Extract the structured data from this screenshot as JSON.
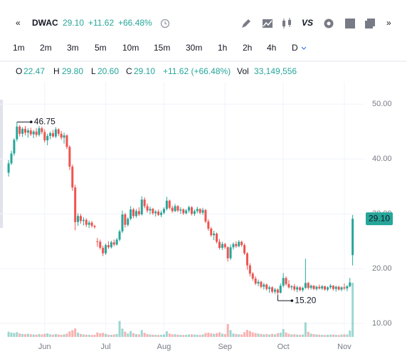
{
  "toolbar": {
    "collapse": "«",
    "symbol": "DWAC",
    "price": "29.10",
    "change": "+11.62",
    "change_pct": "+66.48%",
    "compare": "VS",
    "expand": "»"
  },
  "timeframes": [
    "1m",
    "2m",
    "3m",
    "5m",
    "10m",
    "15m",
    "30m",
    "1h",
    "2h",
    "4h",
    "D"
  ],
  "ohlc_legend": {
    "o_label": "O",
    "o": "22.47",
    "h_label": "H",
    "h": "29.80",
    "l_label": "L",
    "l": "20.60",
    "c_label": "C",
    "c": "29.10",
    "change": "+11.62 (+66.48%)",
    "vol_label": "Vol",
    "vol": "33,149,556"
  },
  "chart_data": {
    "type": "candlestick",
    "up_color": "#26a69a",
    "down_color": "#ef5350",
    "grid": true,
    "ylim": [
      7.3,
      56
    ],
    "xlim": [
      -3.1,
      128.2
    ],
    "yticks": [
      {
        "value": 10,
        "label": "10.00"
      },
      {
        "value": 20,
        "label": "20.00"
      },
      {
        "value": 30,
        "label": "30.00"
      },
      {
        "value": 40,
        "label": "40.00"
      },
      {
        "value": 50,
        "label": "50.00"
      }
    ],
    "xticks": [
      {
        "value": 13,
        "label": "Jun"
      },
      {
        "value": 35,
        "label": "Jul"
      },
      {
        "value": 56,
        "label": "Aug"
      },
      {
        "value": 78,
        "label": "Sep"
      },
      {
        "value": 99,
        "label": "Oct"
      },
      {
        "value": 121,
        "label": "Nov"
      }
    ],
    "annotations": [
      {
        "value": 46.75,
        "label": "46.75"
      },
      {
        "value": 15.2,
        "label": "15.20"
      }
    ],
    "last_price": {
      "value": 29.1,
      "label": "29.10"
    },
    "candles": [
      [
        37.5,
        39.8,
        36.8,
        39.2
      ],
      [
        39.2,
        41.5,
        38.9,
        41.0
      ],
      [
        41.0,
        43.8,
        40.6,
        43.5
      ],
      [
        43.6,
        46.75,
        43.2,
        45.9
      ],
      [
        45.9,
        46.2,
        44.1,
        44.6
      ],
      [
        44.6,
        45.8,
        44.0,
        45.5
      ],
      [
        45.5,
        46.0,
        44.3,
        44.8
      ],
      [
        44.8,
        45.6,
        43.9,
        45.2
      ],
      [
        45.2,
        45.7,
        44.2,
        44.5
      ],
      [
        44.5,
        45.3,
        43.8,
        45.0
      ],
      [
        45.0,
        45.6,
        44.0,
        44.4
      ],
      [
        44.4,
        46.0,
        44.1,
        45.6
      ],
      [
        45.6,
        45.9,
        44.5,
        44.9
      ],
      [
        44.9,
        45.4,
        43.0,
        43.4
      ],
      [
        43.4,
        44.6,
        42.5,
        44.2
      ],
      [
        44.2,
        45.0,
        43.6,
        44.7
      ],
      [
        44.7,
        45.3,
        43.9,
        44.1
      ],
      [
        44.1,
        45.8,
        43.8,
        45.4
      ],
      [
        45.4,
        45.6,
        44.2,
        44.6
      ],
      [
        44.6,
        45.1,
        43.5,
        43.9
      ],
      [
        43.9,
        44.8,
        42.8,
        44.3
      ],
      [
        44.3,
        44.5,
        41.8,
        42.2
      ],
      [
        42.2,
        42.5,
        38.0,
        38.6
      ],
      [
        38.6,
        39.0,
        34.2,
        34.8
      ],
      [
        34.8,
        35.3,
        27.0,
        28.5
      ],
      [
        28.5,
        30.1,
        27.8,
        29.6
      ],
      [
        29.6,
        30.0,
        28.2,
        28.7
      ],
      [
        28.7,
        29.4,
        27.9,
        28.9
      ],
      [
        28.9,
        29.2,
        27.6,
        28.0
      ],
      [
        28.0,
        28.8,
        27.4,
        28.4
      ],
      [
        28.4,
        28.7,
        27.5,
        27.8
      ],
      [
        27.8,
        28.0,
        27.3,
        27.6
      ],
      [
        25.0,
        25.6,
        24.0,
        24.9
      ],
      [
        24.9,
        25.3,
        23.5,
        23.8
      ],
      [
        23.8,
        24.2,
        22.3,
        22.8
      ],
      [
        22.8,
        24.6,
        22.5,
        24.3
      ],
      [
        24.3,
        25.0,
        23.6,
        23.9
      ],
      [
        23.9,
        25.1,
        23.7,
        24.8
      ],
      [
        24.8,
        25.3,
        24.1,
        24.4
      ],
      [
        24.4,
        25.6,
        24.2,
        25.3
      ],
      [
        25.3,
        27.1,
        25.0,
        26.8
      ],
      [
        26.8,
        30.6,
        26.5,
        29.9
      ],
      [
        29.9,
        30.2,
        27.5,
        28.0
      ],
      [
        28.0,
        29.4,
        27.7,
        29.1
      ],
      [
        29.1,
        31.4,
        28.8,
        30.8
      ],
      [
        30.8,
        31.1,
        29.2,
        29.6
      ],
      [
        29.6,
        30.9,
        29.3,
        30.5
      ],
      [
        30.5,
        31.2,
        29.6,
        29.9
      ],
      [
        29.9,
        33.2,
        29.7,
        32.6
      ],
      [
        32.6,
        33.0,
        31.0,
        31.4
      ],
      [
        31.4,
        31.9,
        30.2,
        30.6
      ],
      [
        30.6,
        31.3,
        29.9,
        30.9
      ],
      [
        30.9,
        31.1,
        29.8,
        30.1
      ],
      [
        30.1,
        30.7,
        29.5,
        30.4
      ],
      [
        30.4,
        30.8,
        29.6,
        29.8
      ],
      [
        29.8,
        30.6,
        29.4,
        30.2
      ],
      [
        30.2,
        31.2,
        29.9,
        30.9
      ],
      [
        30.9,
        33.1,
        30.6,
        32.4
      ],
      [
        32.4,
        32.6,
        30.8,
        31.1
      ],
      [
        31.1,
        31.5,
        30.2,
        30.5
      ],
      [
        30.5,
        31.8,
        30.3,
        31.4
      ],
      [
        31.4,
        31.6,
        30.3,
        30.6
      ],
      [
        30.6,
        31.2,
        30.0,
        30.8
      ],
      [
        30.8,
        31.0,
        29.8,
        30.1
      ],
      [
        30.1,
        30.9,
        29.9,
        30.6
      ],
      [
        30.6,
        31.5,
        30.2,
        31.2
      ],
      [
        31.2,
        31.4,
        29.7,
        30.0
      ],
      [
        30.0,
        30.8,
        29.6,
        30.5
      ],
      [
        30.5,
        31.3,
        30.1,
        30.9
      ],
      [
        30.9,
        31.0,
        29.9,
        30.2
      ],
      [
        30.2,
        31.1,
        29.8,
        30.7
      ],
      [
        30.7,
        30.9,
        28.3,
        28.6
      ],
      [
        28.6,
        29.0,
        26.9,
        27.3
      ],
      [
        27.3,
        27.6,
        25.8,
        26.1
      ],
      [
        26.1,
        26.9,
        25.2,
        26.4
      ],
      [
        26.4,
        26.6,
        24.6,
        24.9
      ],
      [
        24.9,
        25.4,
        23.5,
        23.8
      ],
      [
        23.8,
        24.9,
        23.4,
        24.5
      ],
      [
        24.5,
        24.7,
        23.6,
        23.9
      ],
      [
        23.9,
        24.1,
        21.3,
        21.9
      ],
      [
        21.9,
        24.4,
        21.6,
        23.9
      ],
      [
        23.9,
        24.8,
        23.5,
        24.5
      ],
      [
        24.5,
        25.0,
        23.8,
        24.1
      ],
      [
        24.1,
        25.2,
        23.9,
        24.9
      ],
      [
        24.9,
        25.1,
        24.0,
        24.3
      ],
      [
        24.3,
        24.6,
        22.5,
        22.8
      ],
      [
        22.8,
        23.0,
        19.8,
        20.6
      ],
      [
        20.6,
        21.0,
        18.6,
        19.1
      ],
      [
        19.1,
        19.4,
        17.8,
        18.2
      ],
      [
        18.2,
        18.6,
        17.0,
        17.3
      ],
      [
        17.3,
        18.0,
        16.8,
        17.6
      ],
      [
        17.6,
        17.8,
        16.4,
        16.7
      ],
      [
        16.7,
        17.4,
        16.2,
        17.1
      ],
      [
        17.1,
        17.3,
        16.0,
        16.3
      ],
      [
        16.3,
        16.9,
        15.6,
        16.6
      ],
      [
        16.6,
        16.8,
        15.5,
        15.8
      ],
      [
        15.8,
        16.5,
        15.4,
        16.2
      ],
      [
        16.2,
        16.4,
        15.2,
        15.6
      ],
      [
        15.6,
        17.3,
        15.5,
        16.9
      ],
      [
        16.9,
        19.2,
        16.6,
        18.3
      ],
      [
        18.3,
        18.6,
        16.9,
        17.2
      ],
      [
        17.2,
        17.9,
        16.4,
        16.6
      ],
      [
        16.6,
        17.0,
        16.1,
        16.8
      ],
      [
        16.8,
        17.2,
        15.9,
        16.2
      ],
      [
        16.2,
        16.9,
        15.7,
        16.6
      ],
      [
        16.6,
        16.8,
        15.9,
        16.1
      ],
      [
        16.1,
        16.7,
        15.8,
        16.5
      ],
      [
        16.5,
        21.8,
        16.3,
        17.4
      ],
      [
        17.4,
        17.6,
        16.2,
        16.5
      ],
      [
        16.5,
        17.1,
        16.2,
        16.9
      ],
      [
        16.9,
        17.0,
        16.1,
        16.3
      ],
      [
        16.3,
        16.9,
        16.0,
        16.7
      ],
      [
        16.7,
        17.1,
        16.2,
        16.4
      ],
      [
        16.4,
        17.0,
        16.1,
        16.8
      ],
      [
        16.8,
        16.9,
        16.0,
        16.2
      ],
      [
        16.2,
        16.8,
        15.9,
        16.6
      ],
      [
        16.6,
        17.2,
        16.3,
        16.9
      ],
      [
        16.9,
        17.0,
        16.0,
        16.3
      ],
      [
        16.3,
        16.9,
        15.8,
        16.7
      ],
      [
        16.7,
        16.9,
        16.0,
        16.2
      ],
      [
        16.2,
        16.8,
        15.9,
        16.6
      ],
      [
        16.6,
        17.3,
        16.1,
        16.4
      ],
      [
        16.4,
        17.0,
        15.9,
        16.8
      ],
      [
        16.8,
        18.3,
        16.6,
        17.48
      ],
      [
        22.47,
        29.8,
        20.6,
        29.1
      ]
    ],
    "volume": [
      3200000,
      2600000,
      2400000,
      2900000,
      2100000,
      1800000,
      1700000,
      1900000,
      1600000,
      1500000,
      1400000,
      1700000,
      1500000,
      1900000,
      2200000,
      1600000,
      1400000,
      1800000,
      1500000,
      1300000,
      1600000,
      2000000,
      3400000,
      4100000,
      5200000,
      2600000,
      1800000,
      1500000,
      1400000,
      1300000,
      1200000,
      1300000,
      2700000,
      2200000,
      2500000,
      1900000,
      1400000,
      1300000,
      1500000,
      1800000,
      9800000,
      5100000,
      3200000,
      2100000,
      3600000,
      2300000,
      1700000,
      1600000,
      4200000,
      2500000,
      1800000,
      1500000,
      1400000,
      1300000,
      1200000,
      1300000,
      1500000,
      3400000,
      2100000,
      1600000,
      1700000,
      1400000,
      1300000,
      1200000,
      1300000,
      1500000,
      1600000,
      1400000,
      1300000,
      1200000,
      1500000,
      2400000,
      2600000,
      2200000,
      1900000,
      2300000,
      2800000,
      2000000,
      1700000,
      7900000,
      4200000,
      2100000,
      1800000,
      1600000,
      1500000,
      2900000,
      4300000,
      3600000,
      2800000,
      2400000,
      2000000,
      1800000,
      1600000,
      1700000,
      1500000,
      1900000,
      1600000,
      2300000,
      2600000,
      4800000,
      2700000,
      1900000,
      1500000,
      1600000,
      1400000,
      1300000,
      1500000,
      8900000,
      3100000,
      2000000,
      1700000,
      1500000,
      1400000,
      1300000,
      1200000,
      1300000,
      1400000,
      1500000,
      1300000,
      1200000,
      1400000,
      1600000,
      1500000,
      3900000,
      33149556
    ]
  }
}
